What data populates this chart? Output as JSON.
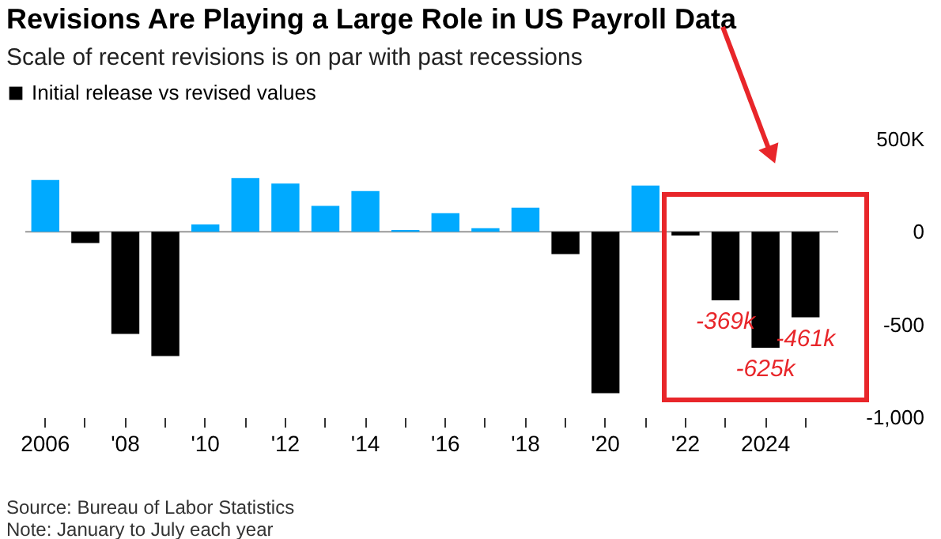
{
  "chart_data": {
    "type": "bar",
    "title": "Revisions Are Playing a Large Role in US Payroll Data",
    "subtitle": "Scale of recent revisions is on par with past recessions",
    "categories": [
      "2006",
      null,
      "'08",
      null,
      "'10",
      null,
      "'12",
      null,
      "'14",
      null,
      "'16",
      null,
      "'18",
      null,
      "'20",
      null,
      "'22",
      null,
      "2024",
      null
    ],
    "series": [
      {
        "name": "Initial release vs revised values",
        "color": "#000000",
        "values": [
          280,
          -60,
          -550,
          -670,
          40,
          290,
          260,
          140,
          220,
          10,
          100,
          20,
          130,
          -120,
          -870,
          250,
          -20,
          -369,
          -625,
          -461
        ],
        "colors": [
          "#00aaff",
          "#000000",
          "#000000",
          "#000000",
          "#00aaff",
          "#00aaff",
          "#00aaff",
          "#00aaff",
          "#00aaff",
          "#00aaff",
          "#00aaff",
          "#00aaff",
          "#00aaff",
          "#000000",
          "#000000",
          "#00aaff",
          "#000000",
          "#000000",
          "#000000",
          "#000000"
        ],
        "value_labels": [
          null,
          null,
          null,
          null,
          null,
          null,
          null,
          null,
          null,
          null,
          null,
          null,
          null,
          null,
          null,
          null,
          null,
          "-369k",
          "-625k",
          "-461k"
        ]
      }
    ],
    "ylim": [
      -1000,
      500
    ],
    "yticks": [
      {
        "value": 500,
        "label": "500K"
      },
      0,
      -500,
      {
        "value": -1000,
        "label": "-1,000"
      }
    ],
    "ref_lines": [
      {
        "axis": "y",
        "value": 0,
        "color": "#999999"
      }
    ],
    "legend": "top left",
    "grid": false,
    "annotations": [
      "Source: Bureau of Labor Statistics",
      "Note: January to July each year"
    ]
  }
}
